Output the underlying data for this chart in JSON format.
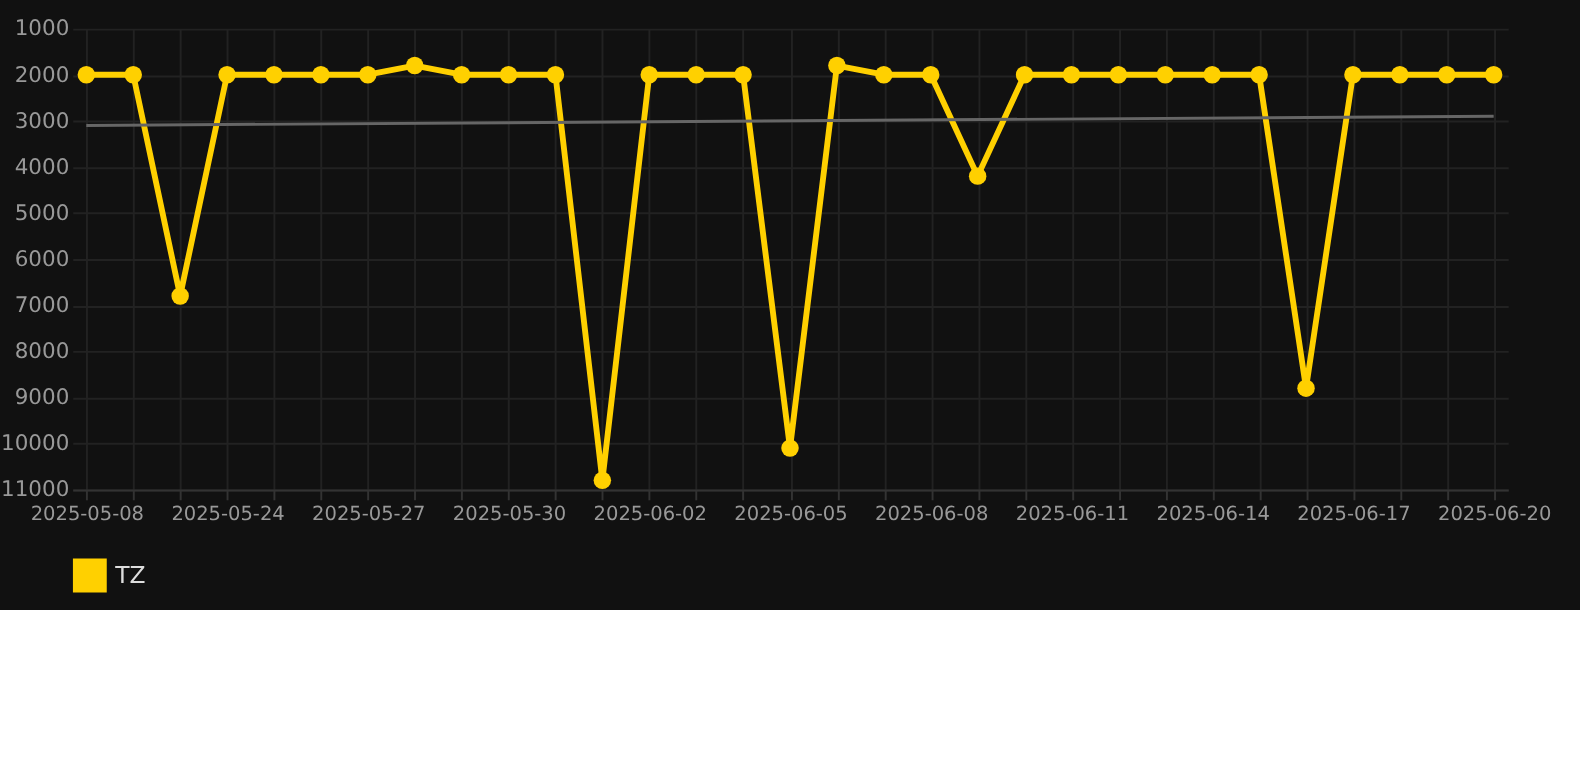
{
  "chart_data": {
    "type": "line",
    "categories": [
      "2025-05-08",
      null,
      null,
      "2025-05-24",
      null,
      null,
      "2025-05-27",
      null,
      null,
      "2025-05-30",
      null,
      null,
      "2025-06-02",
      null,
      null,
      "2025-06-05",
      null,
      null,
      "2025-06-08",
      null,
      null,
      "2025-06-11",
      null,
      null,
      "2025-06-14",
      null,
      null,
      "2025-06-17",
      null,
      null,
      "2025-06-20"
    ],
    "series": [
      {
        "name": "TZ",
        "color": "#ffd000",
        "values": [
          2000,
          2000,
          6800,
          2000,
          2000,
          2000,
          2000,
          1800,
          2000,
          2000,
          2000,
          10800,
          2000,
          2000,
          2000,
          10100,
          1800,
          2000,
          2000,
          4200,
          2000,
          2000,
          2000,
          2000,
          2000,
          2000,
          8800,
          2000,
          2000,
          2000,
          2000
        ]
      },
      {
        "type": "line",
        "color": "#666666",
        "values": [
          3100,
          null,
          null,
          null,
          null,
          null,
          null,
          null,
          null,
          null,
          null,
          null,
          null,
          null,
          null,
          null,
          null,
          null,
          null,
          null,
          null,
          null,
          null,
          null,
          null,
          null,
          null,
          null,
          null,
          null,
          2900
        ],
        "marker": "none"
      }
    ],
    "ylim": [
      11000,
      1000
    ],
    "yticks": [
      1000,
      2000,
      3000,
      4000,
      5000,
      6000,
      7000,
      8000,
      9000,
      10000,
      11000
    ],
    "grid": true,
    "legend": "bottom",
    "marker": "circle",
    "line_style": "solid"
  }
}
